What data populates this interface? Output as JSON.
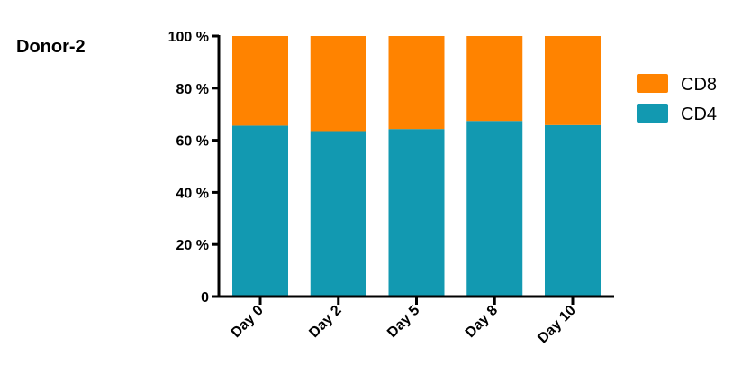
{
  "title": "Donor-2",
  "chart_data": {
    "type": "bar",
    "stacked": true,
    "title": "Donor-2",
    "xlabel": "",
    "ylabel": "",
    "categories": [
      "Day 0",
      "Day 2",
      "Day 5",
      "Day 8",
      "Day 10"
    ],
    "series": [
      {
        "name": "CD4",
        "color": "#1299B1",
        "values": [
          65.6,
          63.5,
          64.3,
          67.4,
          65.8
        ]
      },
      {
        "name": "CD8",
        "color": "#FF8300",
        "values": [
          34.4,
          36.5,
          35.7,
          32.6,
          34.2
        ]
      }
    ],
    "ylim": [
      0,
      100
    ],
    "yticks": [
      0,
      20,
      40,
      60,
      80,
      100
    ],
    "ytick_labels": [
      "0",
      "20 %",
      "40 %",
      "60 %",
      "80 %",
      "100 %"
    ],
    "legend": {
      "position": "right",
      "order": [
        "CD8",
        "CD4"
      ]
    },
    "grid": false
  }
}
